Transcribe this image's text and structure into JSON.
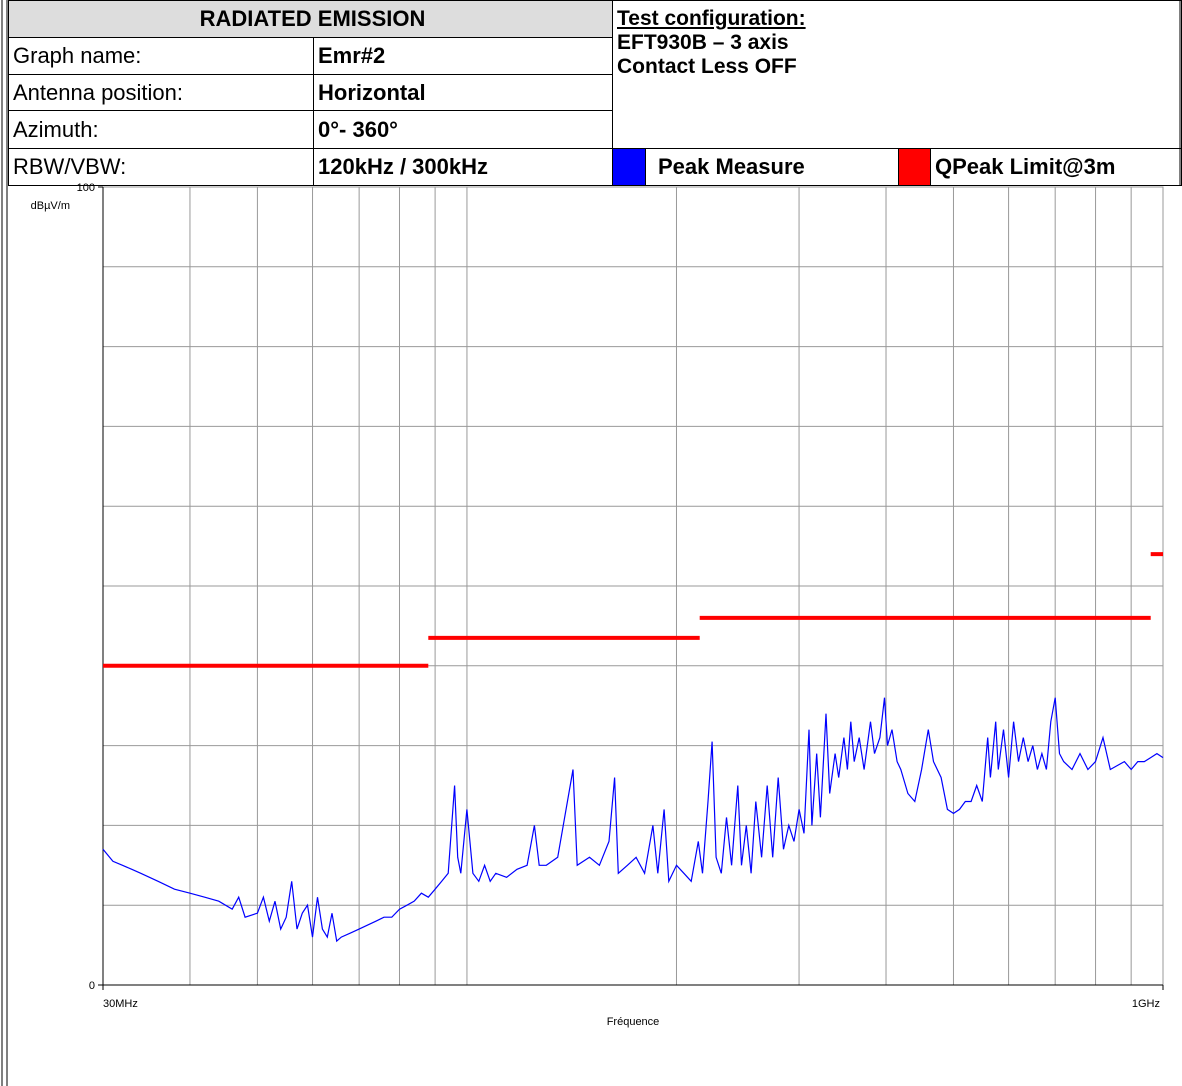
{
  "header": {
    "title": "RADIATED EMISSION",
    "rows": [
      [
        "Graph name:",
        "Emr#2"
      ],
      [
        "Antenna position:",
        "Horizontal"
      ],
      [
        "Azimuth:",
        "0°- 360°"
      ],
      [
        "RBW/VBW:",
        "120kHz / 300kHz"
      ]
    ],
    "config_title": "Test configuration:",
    "config_lines": [
      "EFT930B – 3 axis",
      "Contact Less OFF"
    ]
  },
  "chart_data": {
    "type": "line",
    "xlabel": "Fréquence",
    "ylabel": "dBµV/m",
    "xscale": "log",
    "xlim": [
      30,
      1000
    ],
    "xticks": [
      {
        "value": 30,
        "label": "30MHz"
      },
      {
        "value": 1000,
        "label": "1GHz"
      }
    ],
    "xgrid": [
      40,
      50,
      60,
      70,
      80,
      90,
      100,
      200,
      300,
      400,
      500,
      600,
      700,
      800,
      900
    ],
    "ylim": [
      0,
      100
    ],
    "yticks": [
      0,
      100
    ],
    "ygrid": [
      10,
      20,
      30,
      40,
      50,
      60,
      70,
      80,
      90
    ],
    "grid": true,
    "series": [
      {
        "name": "Peak Measure",
        "color": "#0000ff",
        "x": [
          30,
          31,
          32,
          33,
          34,
          36,
          38,
          40,
          42,
          44,
          46,
          47,
          48,
          50,
          51,
          52,
          53,
          54,
          55,
          56,
          57,
          58,
          59,
          60,
          61,
          62,
          63,
          64,
          65,
          66,
          68,
          70,
          72,
          74,
          76,
          78,
          80,
          82,
          84,
          86,
          88,
          90,
          92,
          94,
          96,
          97,
          98,
          100,
          102,
          104,
          106,
          108,
          110,
          114,
          118,
          122,
          125,
          127,
          130,
          135,
          142,
          144,
          150,
          155,
          160,
          163,
          165,
          170,
          175,
          180,
          185,
          188,
          192,
          195,
          200,
          205,
          210,
          215,
          218,
          222,
          225,
          228,
          232,
          236,
          240,
          245,
          248,
          252,
          256,
          260,
          265,
          270,
          275,
          280,
          285,
          290,
          295,
          300,
          305,
          310,
          313,
          318,
          322,
          328,
          332,
          338,
          342,
          348,
          352,
          356,
          360,
          366,
          372,
          380,
          385,
          392,
          398,
          402,
          408,
          415,
          420,
          430,
          440,
          450,
          460,
          468,
          480,
          490,
          500,
          510,
          520,
          530,
          540,
          550,
          560,
          565,
          575,
          580,
          590,
          600,
          610,
          620,
          630,
          640,
          650,
          660,
          670,
          680,
          690,
          700,
          710,
          720,
          740,
          760,
          780,
          800,
          820,
          840,
          860,
          880,
          900,
          920,
          940,
          960,
          980,
          1000
        ],
        "values": [
          17,
          15.5,
          15,
          14.5,
          14,
          13,
          12,
          11.5,
          11,
          10.5,
          9.5,
          11,
          8.5,
          9,
          11,
          8,
          10.5,
          7,
          8.5,
          13,
          7,
          9,
          10,
          6,
          11,
          7,
          6,
          9,
          5.5,
          6,
          6.5,
          7,
          7.5,
          8,
          8.5,
          8.5,
          9.5,
          10,
          10.5,
          11.5,
          11,
          12,
          13,
          14,
          25,
          16,
          14,
          22,
          14,
          13,
          15,
          13,
          14,
          13.5,
          14.5,
          15,
          20,
          15,
          15,
          16,
          27,
          15,
          16,
          15,
          18,
          26,
          14,
          15,
          16,
          14,
          20,
          14,
          22,
          13,
          15,
          14,
          13,
          18,
          14,
          23,
          30.5,
          16,
          14,
          21,
          15,
          25,
          15,
          20,
          14,
          23,
          16,
          25,
          16,
          26,
          17,
          20,
          18,
          22,
          19,
          32,
          20,
          29,
          21,
          34,
          24,
          29,
          26,
          31,
          27,
          33,
          28,
          31,
          27,
          33,
          29,
          31,
          36,
          30,
          32,
          28,
          27,
          24,
          23,
          27,
          32,
          28,
          26,
          22,
          21.5,
          22,
          23,
          23,
          25,
          23,
          31,
          26,
          33,
          27,
          32,
          26,
          33,
          28,
          31,
          28,
          30,
          27,
          29,
          27,
          33,
          36,
          29,
          28,
          27,
          29,
          27,
          28,
          31,
          27,
          27.5,
          28,
          27,
          28,
          28,
          28.5,
          29,
          28.5
        ]
      },
      {
        "name": "QPeak Limit@3m",
        "color": "#ff0000",
        "x": [
          30,
          88,
          88,
          88,
          216,
          216,
          216,
          960,
          960,
          960,
          1000
        ],
        "values": [
          40,
          40,
          null,
          43.5,
          43.5,
          null,
          46,
          46,
          null,
          54,
          54
        ]
      }
    ]
  }
}
